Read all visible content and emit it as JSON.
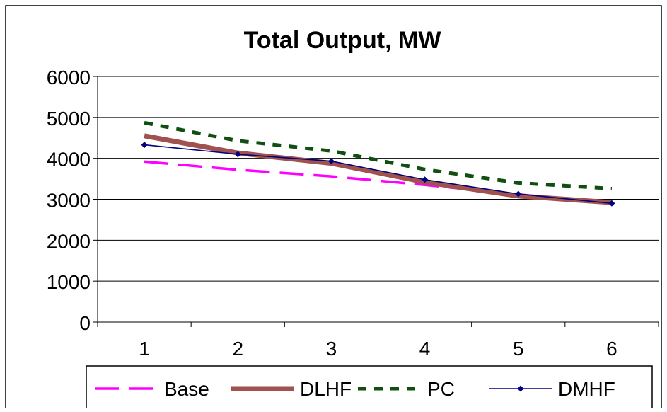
{
  "chart_data": {
    "type": "line",
    "title": "Total Output, MW",
    "xlabel": "",
    "ylabel": "",
    "categories": [
      "1",
      "2",
      "3",
      "4",
      "5",
      "6"
    ],
    "ylim": [
      0,
      6000
    ],
    "yticks": [
      0,
      1000,
      2000,
      3000,
      4000,
      5000,
      6000
    ],
    "grid": "horizontal",
    "legend": "bottom",
    "series": [
      {
        "name": "Base",
        "values": [
          3920,
          3720,
          3560,
          3350,
          3120,
          2900
        ],
        "color": "#ff00ff",
        "style": "long-dash"
      },
      {
        "name": "DLHF",
        "values": [
          4550,
          4130,
          3880,
          3420,
          3080,
          2920
        ],
        "color": "#a0524e",
        "style": "thick-solid"
      },
      {
        "name": "PC",
        "values": [
          4870,
          4430,
          4180,
          3730,
          3400,
          3260
        ],
        "color": "#0f4f0f",
        "style": "short-dash"
      },
      {
        "name": "DMHF",
        "values": [
          4330,
          4100,
          3930,
          3480,
          3130,
          2900
        ],
        "color": "#000080",
        "style": "thin-diamond"
      }
    ]
  }
}
